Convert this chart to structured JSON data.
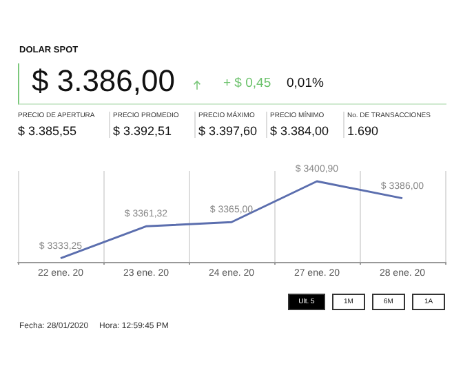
{
  "chart_data": {
    "type": "line",
    "title": "DOLAR SPOT",
    "categories": [
      "22 ene. 20",
      "23 ene. 20",
      "24 ene. 20",
      "27 ene. 20",
      "28 ene. 20"
    ],
    "values": [
      3333.25,
      3361.32,
      3365.0,
      3400.9,
      3386.0
    ],
    "value_labels": [
      "$ 3333,25",
      "$ 3361,32",
      "$ 3365,00",
      "$ 3400,90",
      "$ 3386,00"
    ],
    "color": "#5b6eae",
    "grid": "x",
    "tick_labels": "x",
    "marker": "none",
    "annotations": [
      "$ 3.386,00",
      "+ $ 0,45",
      "0,01%",
      "PRECIO DE APERTURA",
      "$ 3.385,55",
      "PRECIO PROMEDIO",
      "$ 3.392,51",
      "PRECIO MÁXIMO",
      "$ 3.397,60",
      "PRECIO MÍNIMO",
      "$ 3.384,00",
      "No. DE TRANSACCIONES",
      "1.690",
      "Ult. 5",
      "1M",
      "6M",
      "1A",
      "Fecha: 28/01/2020",
      "Hora: 12:59:45 PM"
    ]
  }
}
